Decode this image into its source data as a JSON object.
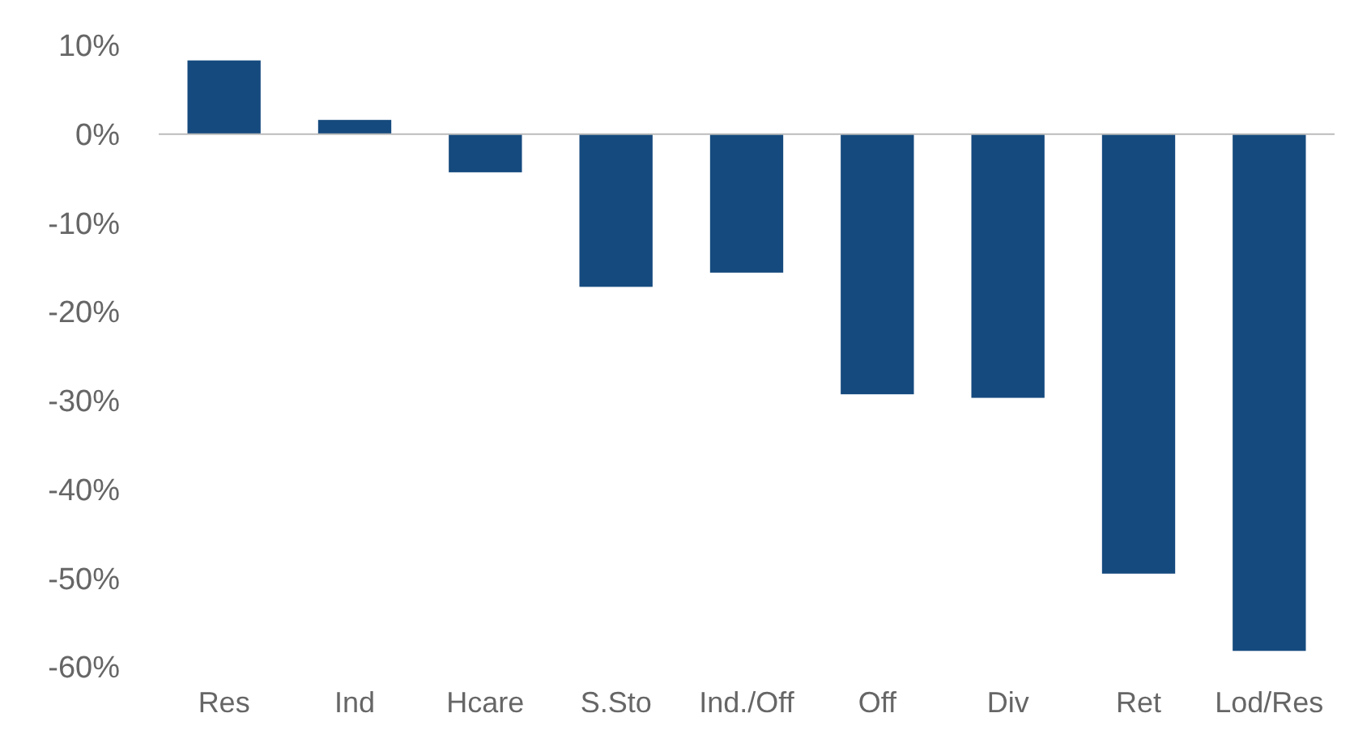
{
  "chart_data": {
    "type": "bar",
    "categories": [
      "Res",
      "Ind",
      "Hcare",
      "S.Sto",
      "Ind./Off",
      "Off",
      "Div",
      "Ret",
      "Lod/Res"
    ],
    "values": [
      8.3,
      1.6,
      -4.3,
      -17.2,
      -15.6,
      -29.3,
      -29.7,
      -49.5,
      -58.2
    ],
    "color": "#154a7e",
    "ylim": [
      -60,
      10
    ],
    "yticks": [
      {
        "value": 10,
        "label": "10%"
      },
      {
        "value": 0,
        "label": "0%"
      },
      {
        "value": -10,
        "label": "-10%"
      },
      {
        "value": -20,
        "label": "-20%"
      },
      {
        "value": -30,
        "label": "-30%"
      },
      {
        "value": -40,
        "label": "-40%"
      },
      {
        "value": -50,
        "label": "-50%"
      },
      {
        "value": -60,
        "label": "-60%"
      }
    ],
    "tick_labels": true
  }
}
